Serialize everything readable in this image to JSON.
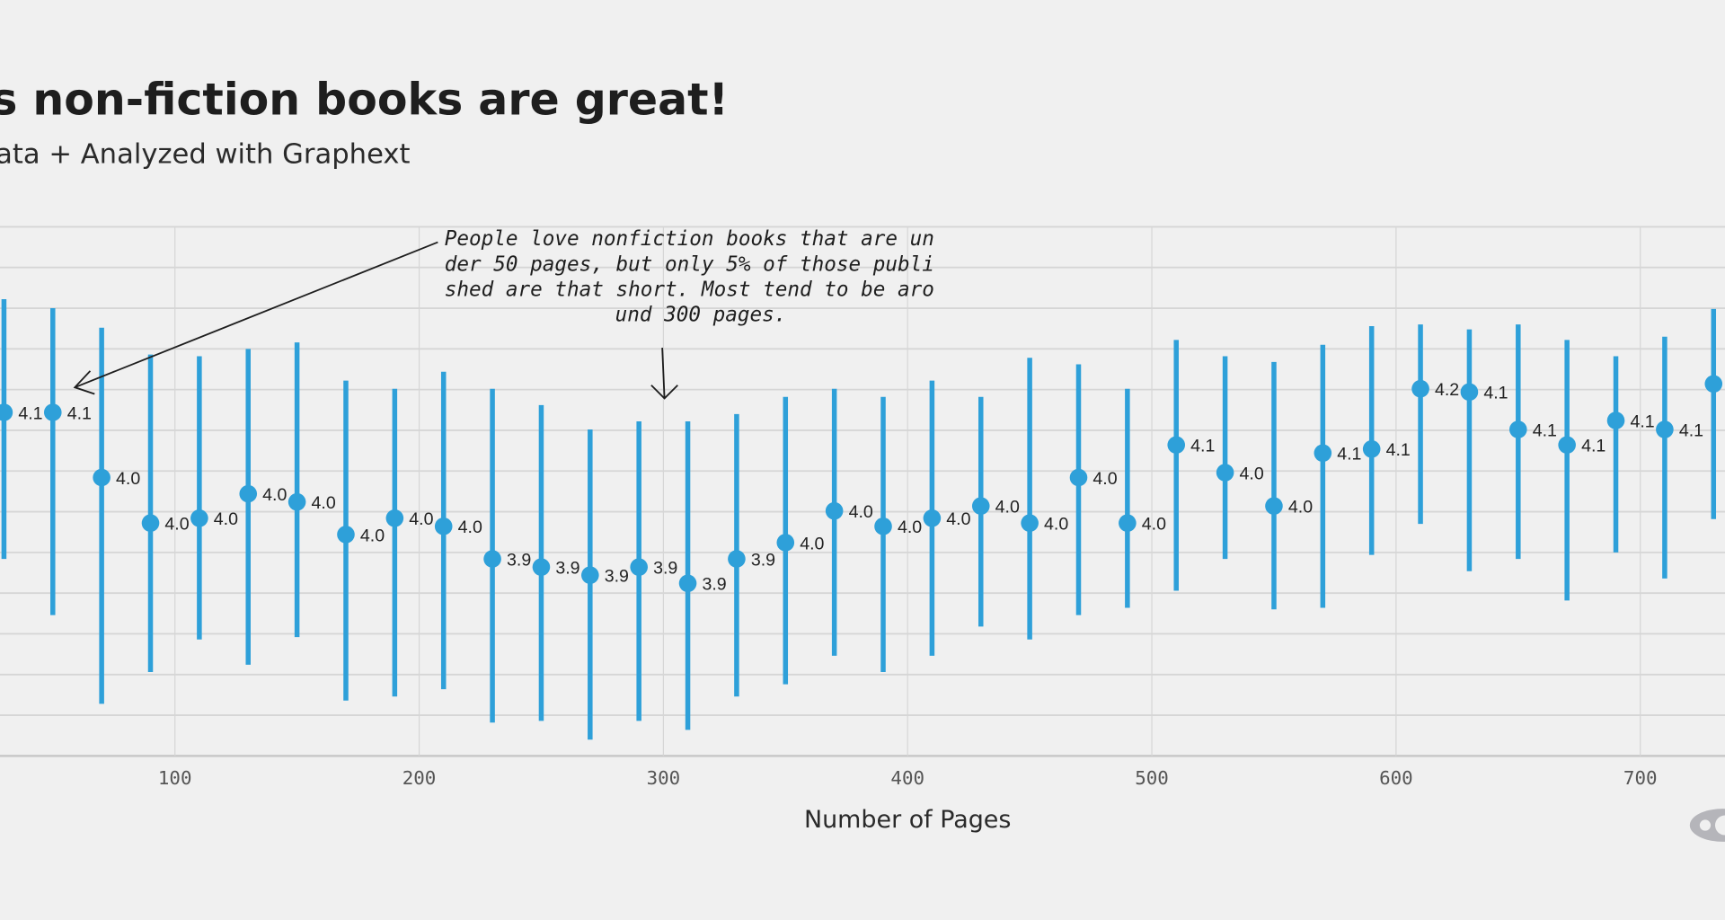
{
  "header": {
    "title": "s non-fiction books are great!",
    "subtitle": "ata + Analyzed with Graphext"
  },
  "annotation": {
    "lines": [
      "People love nonfiction books that are un",
      "der 50 pages, but only 5% of those publi",
      "shed are that short. Most tend to be aro",
      "und 300 pages."
    ]
  },
  "chart_data": {
    "type": "scatter",
    "subtype": "point with error bars",
    "title": "s non-fiction books are great!",
    "xlabel": "Number of Pages",
    "ylabel": "",
    "xlim": [
      -28,
      737
    ],
    "ylim": [
      3.7,
      4.35
    ],
    "grid": true,
    "x_ticks": [
      100,
      200,
      300,
      400,
      500,
      600,
      700
    ],
    "color": "#2ea0d9",
    "x": [
      30,
      50,
      70,
      90,
      110,
      130,
      150,
      170,
      190,
      210,
      230,
      250,
      270,
      290,
      310,
      330,
      350,
      370,
      390,
      410,
      430,
      450,
      470,
      490,
      510,
      530,
      550,
      570,
      590,
      610,
      630,
      650,
      670,
      690,
      710,
      730
    ],
    "y": [
      4.122,
      4.122,
      4.042,
      3.986,
      3.992,
      4.022,
      4.012,
      3.972,
      3.992,
      3.982,
      3.942,
      3.932,
      3.922,
      3.932,
      3.912,
      3.942,
      3.962,
      4.001,
      3.982,
      3.992,
      4.007,
      3.986,
      4.042,
      3.986,
      4.082,
      4.048,
      4.007,
      4.072,
      4.077,
      4.151,
      4.147,
      4.101,
      4.082,
      4.112,
      4.101,
      4.157
    ],
    "y_upper": [
      4.261,
      4.25,
      4.226,
      4.193,
      4.191,
      4.2,
      4.208,
      4.161,
      4.151,
      4.172,
      4.151,
      4.131,
      4.101,
      4.111,
      4.111,
      4.12,
      4.141,
      4.151,
      4.141,
      4.161,
      4.141,
      4.189,
      4.181,
      4.151,
      4.211,
      4.191,
      4.184,
      4.205,
      4.228,
      4.23,
      4.224,
      4.23,
      4.211,
      4.191,
      4.215,
      4.249
    ],
    "y_lower": [
      3.942,
      3.873,
      3.764,
      3.803,
      3.843,
      3.812,
      3.846,
      3.768,
      3.773,
      3.782,
      3.741,
      3.743,
      3.72,
      3.743,
      3.732,
      3.773,
      3.788,
      3.823,
      3.803,
      3.823,
      3.859,
      3.843,
      3.873,
      3.882,
      3.903,
      3.942,
      3.88,
      3.882,
      3.947,
      3.985,
      3.927,
      3.942,
      3.891,
      3.95,
      3.918,
      3.991
    ],
    "labels": [
      "4.1",
      "4.1",
      "4.0",
      "4.0",
      "4.0",
      "4.0",
      "4.0",
      "4.0",
      "4.0",
      "4.0",
      "3.9",
      "3.9",
      "3.9",
      "3.9",
      "3.9",
      "3.9",
      "4.0",
      "4.0",
      "4.0",
      "4.0",
      "4.0",
      "4.0",
      "4.0",
      "4.0",
      "4.1",
      "4.0",
      "4.0",
      "4.1",
      "4.1",
      "4.2",
      "4.1",
      "4.1",
      "4.1",
      "4.1",
      "4.1",
      ""
    ]
  },
  "logo": {
    "icon": "graphext-logo"
  }
}
